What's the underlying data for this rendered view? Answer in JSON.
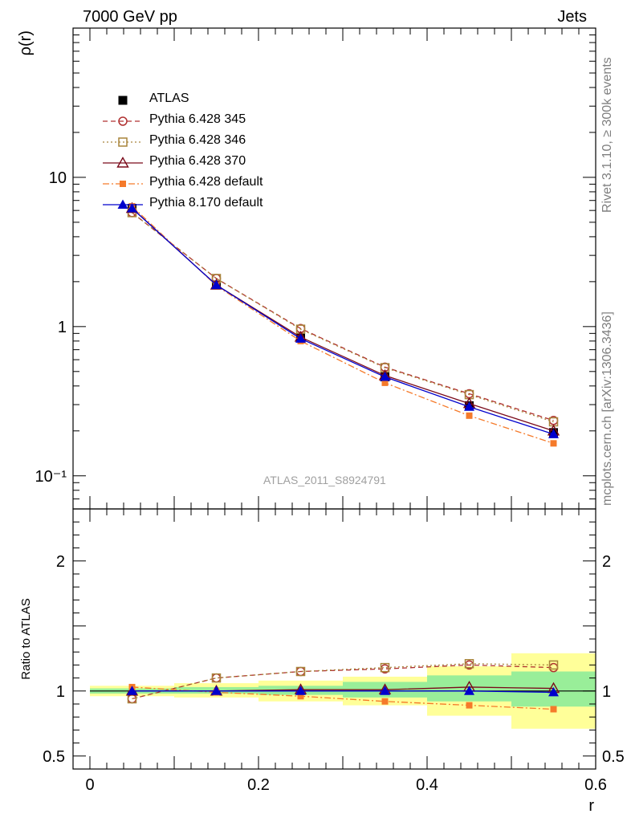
{
  "header": {
    "left": "7000 GeV pp",
    "right": "Jets"
  },
  "side_labels": {
    "rivet": "Rivet 3.1.10, ≥ 300k events",
    "source": "mcplots.cern.ch [arXiv:1306.3436]"
  },
  "watermark": "ATLAS_2011_S8924791",
  "chart_data": [
    {
      "type": "line",
      "panel": "main",
      "ylabel": "ρ(r)",
      "xlabel": "",
      "yscale": "log",
      "ylim": [
        0.06,
        100
      ],
      "xlim": [
        -0.02,
        0.6
      ],
      "ytick_labels": [
        "10⁻¹",
        "1",
        "10"
      ],
      "ytick_values": [
        0.1,
        1,
        10
      ],
      "x": [
        0.05,
        0.15,
        0.25,
        0.35,
        0.45,
        0.55
      ],
      "series": [
        {
          "name": "ATLAS",
          "values": [
            6.2,
            1.9,
            0.84,
            0.46,
            0.295,
            0.195
          ],
          "color": "#000000",
          "marker": "square-filled",
          "line": "none"
        },
        {
          "name": "Pythia 6.428 345",
          "values": [
            5.8,
            2.1,
            0.97,
            0.535,
            0.355,
            0.235
          ],
          "color": "#b03030",
          "marker": "circle-open",
          "line": "dashed"
        },
        {
          "name": "Pythia 6.428 346",
          "values": [
            5.8,
            2.1,
            0.96,
            0.53,
            0.35,
            0.23
          ],
          "color": "#a8843a",
          "marker": "square-open",
          "line": "dotted"
        },
        {
          "name": "Pythia 6.428 370",
          "values": [
            6.2,
            1.9,
            0.85,
            0.47,
            0.305,
            0.2
          ],
          "color": "#7a0a1a",
          "marker": "triangle-open",
          "line": "solid"
        },
        {
          "name": "Pythia 6.428 default",
          "values": [
            6.4,
            1.88,
            0.8,
            0.42,
            0.253,
            0.165
          ],
          "color": "#f57a2a",
          "marker": "square-filled-small",
          "line": "dashdot"
        },
        {
          "name": "Pythia 8.170 default",
          "values": [
            6.2,
            1.9,
            0.83,
            0.46,
            0.29,
            0.19
          ],
          "color": "#0000cc",
          "marker": "triangle-filled",
          "line": "solid"
        }
      ],
      "legend_position": "top-left"
    },
    {
      "type": "line",
      "panel": "ratio",
      "ylabel": "Ratio to ATLAS",
      "xlabel": "r",
      "ylim": [
        0.4,
        2.4
      ],
      "xlim": [
        -0.02,
        0.6
      ],
      "yticks": [
        0.5,
        1,
        2
      ],
      "ytick_labels": [
        "0.5",
        "1",
        "2"
      ],
      "xticks": [
        0,
        0.2,
        0.4,
        0.6
      ],
      "xtick_labels": [
        "0",
        "0.2",
        "0.4",
        "0.6"
      ],
      "band_bins": [
        [
          0.0,
          0.1
        ],
        [
          0.1,
          0.2
        ],
        [
          0.2,
          0.3
        ],
        [
          0.3,
          0.4
        ],
        [
          0.4,
          0.5
        ],
        [
          0.5,
          0.6
        ]
      ],
      "yellow_band": [
        [
          0.96,
          1.04
        ],
        [
          0.95,
          1.06
        ],
        [
          0.92,
          1.08
        ],
        [
          0.89,
          1.11
        ],
        [
          0.81,
          1.19
        ],
        [
          0.71,
          1.29
        ]
      ],
      "green_band": [
        [
          0.98,
          1.02
        ],
        [
          0.98,
          1.03
        ],
        [
          0.97,
          1.04
        ],
        [
          0.95,
          1.07
        ],
        [
          0.92,
          1.12
        ],
        [
          0.88,
          1.15
        ]
      ],
      "x": [
        0.05,
        0.15,
        0.25,
        0.35,
        0.45,
        0.55
      ],
      "series": [
        {
          "name": "Pythia 6.428 345",
          "values": [
            0.94,
            1.1,
            1.15,
            1.17,
            1.2,
            1.18
          ],
          "color": "#b03030",
          "marker": "circle-open",
          "line": "dashed"
        },
        {
          "name": "Pythia 6.428 346",
          "values": [
            0.94,
            1.1,
            1.15,
            1.18,
            1.21,
            1.2
          ],
          "color": "#a8843a",
          "marker": "square-open",
          "line": "dotted"
        },
        {
          "name": "Pythia 6.428 370",
          "values": [
            1.0,
            1.0,
            1.01,
            1.01,
            1.03,
            1.02
          ],
          "color": "#7a0a1a",
          "marker": "triangle-open",
          "line": "solid"
        },
        {
          "name": "Pythia 6.428 default",
          "values": [
            1.03,
            0.99,
            0.96,
            0.92,
            0.89,
            0.86
          ],
          "color": "#f57a2a",
          "marker": "square-filled-small",
          "line": "dashdot"
        },
        {
          "name": "Pythia 8.170 default",
          "values": [
            1.0,
            1.0,
            1.0,
            1.0,
            1.0,
            0.99
          ],
          "color": "#0000cc",
          "marker": "triangle-filled",
          "line": "solid"
        }
      ]
    }
  ]
}
